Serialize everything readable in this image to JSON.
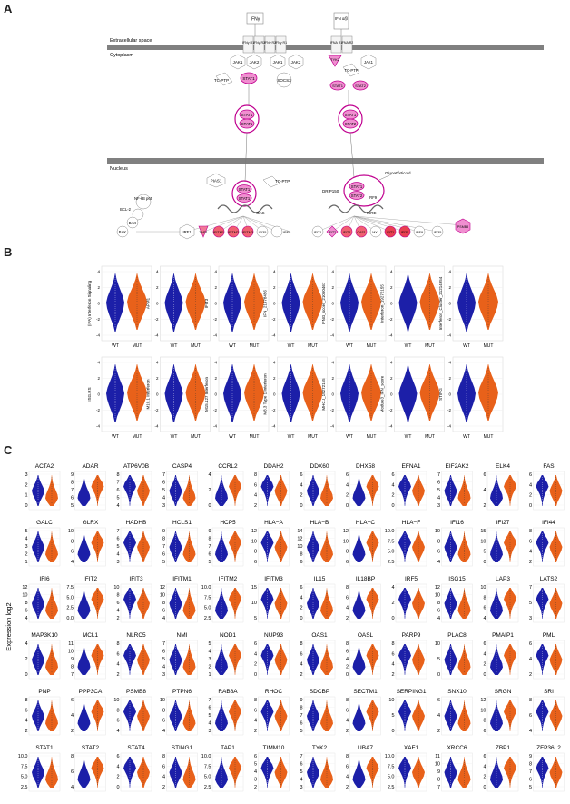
{
  "panels": {
    "a": "A",
    "b": "B",
    "c": "C"
  },
  "pathway": {
    "membrane_top": "Extracellular space",
    "membrane_bottom": "Cytoplasm",
    "nucleus": "Nucleus",
    "left": {
      "ligand": "IFNγ",
      "receptors": [
        "IFNγ R1",
        "IFNγ R2",
        "IFNγ R2",
        "IFNγ R1"
      ],
      "kinases": [
        "JAK1",
        "JAK2",
        "JAK1",
        "JAK2"
      ],
      "tcptp": "TC-PTP",
      "socs": "SOCS3",
      "stat": "STAT1",
      "pias": "PIAS1",
      "tcptp2": "TC-PTP",
      "gas": "GAS",
      "nfkb": "NF-kB p65",
      "bcl2": "BCL-2",
      "bax": "BAX",
      "bak": "BAK",
      "irf1": "IRF1",
      "targets": [
        "TAP1",
        "IFITM1",
        "IFITM2",
        "IFITM3",
        "IFI35",
        "IRF9"
      ]
    },
    "right": {
      "ligand": "IFN α/β",
      "receptors": [
        "IFNA R1",
        "IFNA R2"
      ],
      "kinases": [
        "TYK2",
        "TC-PTP",
        "JAK1"
      ],
      "stat1": "STAT1",
      "stat2": "STAT2",
      "glucocorticoid": "Glucocorticoid",
      "drip": "DRIP150",
      "irf9": "IRF9",
      "isre": "ISRE",
      "targets": [
        "IFIT1",
        "IFIT2",
        "IFIT3",
        "OAS1",
        "MX1",
        "IFIT1",
        "IFI35",
        "IRF9",
        "IFI35",
        "PSMB8"
      ]
    }
  },
  "panel_b": {
    "group_labels": [
      "WT",
      "MUT"
    ],
    "ticks": [
      "4",
      "2",
      "0",
      "-2",
      "-4"
    ],
    "colors": {
      "wt": "#1c1fa8",
      "mut": "#e8611a"
    },
    "row1": [
      "(IPA) Interferon Signaling",
      "APM1",
      "IFIT3",
      "IFN_21978456",
      "IFNG_score_21050467",
      "Interferon_19272155",
      "Interferon_Cluster_21214954"
    ],
    "row2": [
      "ISG.RS",
      "M10.1 Interferon",
      "M15.127 Interferon",
      "M8.3 Type 1 Interferon",
      "MHC.I_19272155",
      "Module3_IFN_score",
      "STING"
    ]
  },
  "panel_c": {
    "ylabel": "Expression log2",
    "genes": [
      {
        "name": "ACTA2",
        "ticks": [
          "3",
          "2",
          "1",
          "0"
        ]
      },
      {
        "name": "ADAR",
        "ticks": [
          "9",
          "8",
          "7",
          "6",
          "5"
        ]
      },
      {
        "name": "ATP6V0B",
        "ticks": [
          "8",
          "7",
          "6",
          "5",
          "4"
        ]
      },
      {
        "name": "CASP4",
        "ticks": [
          "7",
          "6",
          "5",
          "4",
          "3"
        ]
      },
      {
        "name": "CCRL2",
        "ticks": [
          "4",
          "2",
          "0"
        ]
      },
      {
        "name": "DDAH2",
        "ticks": [
          "8",
          "6",
          "4",
          "2"
        ]
      },
      {
        "name": "DDX60",
        "ticks": [
          "6",
          "4",
          "2",
          "0"
        ]
      },
      {
        "name": "DHX58",
        "ticks": [
          "6",
          "4",
          "2",
          "0"
        ]
      },
      {
        "name": "EFNA1",
        "ticks": [
          "6",
          "4",
          "2",
          "0"
        ]
      },
      {
        "name": "EIF2AK2",
        "ticks": [
          "7",
          "6",
          "5",
          "4",
          "3"
        ]
      },
      {
        "name": "ELK4",
        "ticks": [
          "6",
          "4",
          "2"
        ]
      },
      {
        "name": "FAS",
        "ticks": [
          "6",
          "4",
          "2",
          "0"
        ]
      },
      {
        "name": "GALC",
        "ticks": [
          "5",
          "4",
          "3",
          "2",
          "1"
        ]
      },
      {
        "name": "GLRX",
        "ticks": [
          "10",
          "8",
          "6",
          "4"
        ]
      },
      {
        "name": "HADHB",
        "ticks": [
          "7",
          "6",
          "5",
          "4",
          "3"
        ]
      },
      {
        "name": "HCLS1",
        "ticks": [
          "9",
          "8",
          "7",
          "6",
          "5"
        ]
      },
      {
        "name": "HCP5",
        "ticks": [
          "9",
          "8",
          "7",
          "6",
          "5"
        ]
      },
      {
        "name": "HLA−A",
        "ticks": [
          "12",
          "10",
          "8",
          "6"
        ]
      },
      {
        "name": "HLA−B",
        "ticks": [
          "14",
          "12",
          "10",
          "8",
          "6"
        ]
      },
      {
        "name": "HLA−C",
        "ticks": [
          "12",
          "10",
          "8",
          "6"
        ]
      },
      {
        "name": "HLA−F",
        "ticks": [
          "10.0",
          "7.5",
          "5.0",
          "2.5"
        ]
      },
      {
        "name": "IFI16",
        "ticks": [
          "10",
          "8",
          "6",
          "4"
        ]
      },
      {
        "name": "IFI27",
        "ticks": [
          "15",
          "10",
          "5",
          "0"
        ]
      },
      {
        "name": "IFI44",
        "ticks": [
          "8",
          "6",
          "4",
          "2"
        ]
      },
      {
        "name": "IFI6",
        "ticks": [
          "12",
          "10",
          "8",
          "6",
          "4"
        ]
      },
      {
        "name": "IFIT2",
        "ticks": [
          "7.5",
          "5.0",
          "2.5",
          "0.0"
        ]
      },
      {
        "name": "IFIT3",
        "ticks": [
          "10",
          "8",
          "6",
          "4",
          "2"
        ]
      },
      {
        "name": "IFITM1",
        "ticks": [
          "12",
          "10",
          "8",
          "6",
          "4"
        ]
      },
      {
        "name": "IFITM2",
        "ticks": [
          "10.0",
          "7.5",
          "5.0",
          "2.5"
        ]
      },
      {
        "name": "IFITM3",
        "ticks": [
          "15",
          "10",
          "5"
        ]
      },
      {
        "name": "IL15",
        "ticks": [
          "6",
          "4",
          "2",
          "0"
        ]
      },
      {
        "name": "IL18BP",
        "ticks": [
          "8",
          "6",
          "4",
          "2"
        ]
      },
      {
        "name": "IRF5",
        "ticks": [
          "4",
          "2",
          "0"
        ]
      },
      {
        "name": "ISG15",
        "ticks": [
          "12",
          "10",
          "8",
          "6",
          "4"
        ]
      },
      {
        "name": "LAP3",
        "ticks": [
          "10",
          "8",
          "6",
          "4"
        ]
      },
      {
        "name": "LATS2",
        "ticks": [
          "7",
          "5",
          "3"
        ]
      },
      {
        "name": "MAP3K10",
        "ticks": [
          "4",
          "2",
          "0"
        ]
      },
      {
        "name": "MCL1",
        "ticks": [
          "11",
          "10",
          "9",
          "8",
          "7"
        ]
      },
      {
        "name": "NLRC5",
        "ticks": [
          "8",
          "6",
          "4",
          "2"
        ]
      },
      {
        "name": "NMI",
        "ticks": [
          "7",
          "6",
          "5",
          "4",
          "3"
        ]
      },
      {
        "name": "NOD1",
        "ticks": [
          "5",
          "4",
          "3",
          "2",
          "1"
        ]
      },
      {
        "name": "NUP93",
        "ticks": [
          "6",
          "4",
          "2",
          "0"
        ]
      },
      {
        "name": "OAS1",
        "ticks": [
          "8",
          "6",
          "4",
          "2"
        ]
      },
      {
        "name": "OASL",
        "ticks": [
          "8",
          "6",
          "4",
          "2",
          "0"
        ]
      },
      {
        "name": "PARP9",
        "ticks": [
          "8",
          "6",
          "4",
          "2"
        ]
      },
      {
        "name": "PLAC8",
        "ticks": [
          "10",
          "5",
          "0"
        ]
      },
      {
        "name": "PMAIP1",
        "ticks": [
          "6",
          "4",
          "2",
          "0"
        ]
      },
      {
        "name": "PML",
        "ticks": [
          "6",
          "4",
          "2"
        ]
      },
      {
        "name": "PNP",
        "ticks": [
          "8",
          "6",
          "4",
          "2"
        ]
      },
      {
        "name": "PPP3CA",
        "ticks": [
          "6",
          "4",
          "2"
        ]
      },
      {
        "name": "PSMB8",
        "ticks": [
          "10",
          "8",
          "6",
          "4"
        ]
      },
      {
        "name": "PTPN6",
        "ticks": [
          "10",
          "8",
          "6",
          "4"
        ]
      },
      {
        "name": "RAB8A",
        "ticks": [
          "7",
          "6",
          "5",
          "4",
          "3"
        ]
      },
      {
        "name": "RHOC",
        "ticks": [
          "8",
          "6",
          "4",
          "2"
        ]
      },
      {
        "name": "SDCBP",
        "ticks": [
          "9",
          "8",
          "7",
          "6",
          "5"
        ]
      },
      {
        "name": "SECTM1",
        "ticks": [
          "8",
          "6",
          "4",
          "2"
        ]
      },
      {
        "name": "SERPING1",
        "ticks": [
          "10",
          "5",
          "0"
        ]
      },
      {
        "name": "SNX10",
        "ticks": [
          "6",
          "4",
          "2"
        ]
      },
      {
        "name": "SRGN",
        "ticks": [
          "12",
          "10",
          "8",
          "6"
        ]
      },
      {
        "name": "SRI",
        "ticks": [
          "8",
          "6",
          "4"
        ]
      },
      {
        "name": "STAT1",
        "ticks": [
          "10.0",
          "7.5",
          "5.0",
          "2.5"
        ]
      },
      {
        "name": "STAT2",
        "ticks": [
          "8",
          "6",
          "4"
        ]
      },
      {
        "name": "STAT4",
        "ticks": [
          "6",
          "4",
          "2",
          "0"
        ]
      },
      {
        "name": "STING1",
        "ticks": [
          "8",
          "6",
          "4",
          "2"
        ]
      },
      {
        "name": "TAP1",
        "ticks": [
          "10.0",
          "7.5",
          "5.0",
          "2.5"
        ]
      },
      {
        "name": "TIMM10",
        "ticks": [
          "6",
          "5",
          "4",
          "3",
          "2"
        ]
      },
      {
        "name": "TYK2",
        "ticks": [
          "7",
          "6",
          "5",
          "4",
          "3"
        ]
      },
      {
        "name": "UBA7",
        "ticks": [
          "8",
          "6",
          "4",
          "2"
        ]
      },
      {
        "name": "XAF1",
        "ticks": [
          "10.0",
          "7.5",
          "5.0",
          "2.5"
        ]
      },
      {
        "name": "XRCC6",
        "ticks": [
          "11",
          "10",
          "9",
          "8",
          "7"
        ]
      },
      {
        "name": "ZBP1",
        "ticks": [
          "6",
          "4",
          "2",
          "0"
        ]
      },
      {
        "name": "ZFP36L2",
        "ticks": [
          "9",
          "8",
          "7",
          "6",
          "5"
        ]
      }
    ]
  }
}
